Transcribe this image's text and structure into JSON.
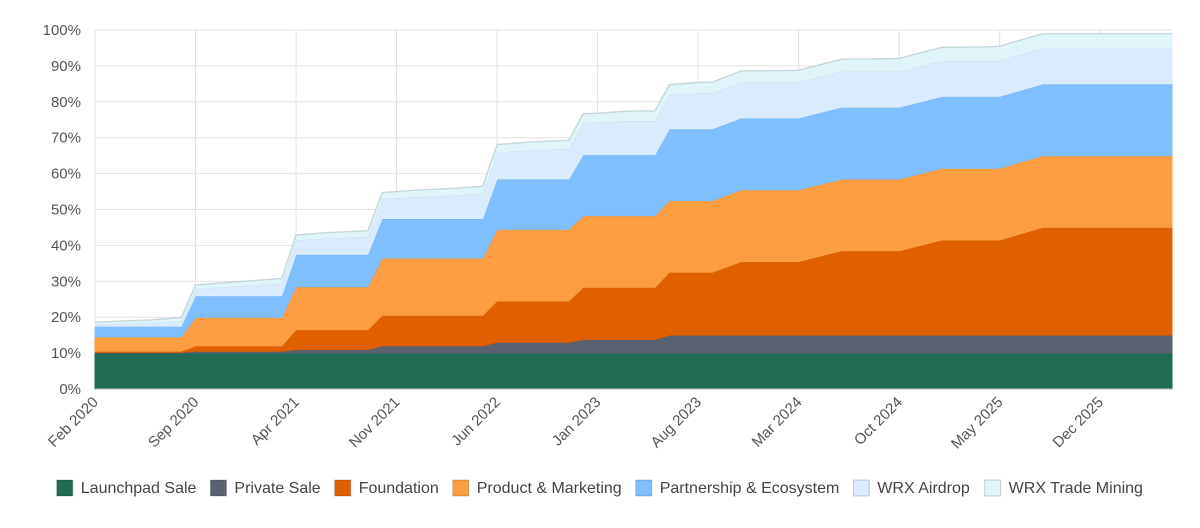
{
  "chart_data": {
    "type": "area",
    "stacked": true,
    "title": "",
    "xlabel": "",
    "ylabel": "",
    "ylim": [
      0,
      100
    ],
    "y_ticks": [
      "0%",
      "10%",
      "20%",
      "30%",
      "40%",
      "50%",
      "60%",
      "70%",
      "80%",
      "90%",
      "100%"
    ],
    "x_ticks": [
      "Feb 2020",
      "Sep 2020",
      "Apr 2021",
      "Nov 2021",
      "Jun 2022",
      "Jan 2023",
      "Aug 2023",
      "Mar 2024",
      "Oct 2024",
      "May 2025",
      "Dec 2025"
    ],
    "x_range": [
      "2020-02",
      "2026-05"
    ],
    "grid": true,
    "legend_position": "bottom",
    "x": [
      "2020-02",
      "2020-06",
      "2020-08",
      "2020-09",
      "2020-11",
      "2021-01",
      "2021-03",
      "2021-04",
      "2021-06",
      "2021-09",
      "2021-10",
      "2021-12",
      "2022-03",
      "2022-05",
      "2022-06",
      "2022-08",
      "2022-11",
      "2022-12",
      "2023-01",
      "2023-03",
      "2023-05",
      "2023-06",
      "2023-08",
      "2023-09",
      "2023-11",
      "2024-02",
      "2024-03",
      "2024-06",
      "2024-09",
      "2024-10",
      "2025-01",
      "2025-04",
      "2025-05",
      "2025-08",
      "2025-11",
      "2026-02",
      "2026-05"
    ],
    "series": [
      {
        "name": "Launchpad Sale",
        "color": "#1f6b53",
        "values": [
          10,
          10,
          10,
          10,
          10,
          10,
          10,
          10,
          10,
          10,
          10,
          10,
          10,
          10,
          10,
          10,
          10,
          10,
          10,
          10,
          10,
          10,
          10,
          10,
          10,
          10,
          10,
          10,
          10,
          10,
          10,
          10,
          10,
          10,
          10,
          10,
          10
        ]
      },
      {
        "name": "Private Sale",
        "color": "#5a6170",
        "values": [
          0.2,
          0.2,
          0.2,
          0.5,
          0.5,
          0.5,
          0.5,
          1,
          1,
          1,
          2,
          2,
          2,
          2,
          3,
          3,
          3,
          3.8,
          3.8,
          3.8,
          3.8,
          5,
          5,
          5,
          5,
          5,
          5,
          5,
          5,
          5,
          5,
          5,
          5,
          5,
          5,
          5,
          5
        ]
      },
      {
        "name": "Foundation",
        "color": "#e06000",
        "values": [
          0.3,
          0.3,
          0.3,
          1.5,
          1.5,
          1.5,
          1.5,
          5.5,
          5.5,
          5.5,
          8.5,
          8.5,
          8.5,
          8.5,
          11.5,
          11.5,
          11.5,
          14.5,
          14.5,
          14.5,
          14.5,
          17.5,
          17.5,
          17.5,
          20.5,
          20.5,
          20.5,
          23.5,
          23.5,
          23.5,
          26.5,
          26.5,
          26.5,
          30,
          30,
          30,
          30
        ]
      },
      {
        "name": "Product & Marketing",
        "color": "#fb9d40",
        "values": [
          4,
          4,
          4,
          8,
          8,
          8,
          8,
          12,
          12,
          12,
          16,
          16,
          16,
          16,
          20,
          20,
          20,
          20,
          20,
          20,
          20,
          20,
          20,
          20,
          20,
          20,
          20,
          20,
          20,
          20,
          20,
          20,
          20,
          20,
          20,
          20,
          20
        ]
      },
      {
        "name": "Partnership & Ecosystem",
        "color": "#7fbfff",
        "values": [
          3,
          3,
          3,
          6,
          6,
          6,
          6,
          9,
          9,
          9,
          11,
          11,
          11,
          11,
          14,
          14,
          14,
          17,
          17,
          17,
          17,
          20,
          20,
          20,
          20,
          20,
          20,
          20,
          20,
          20,
          20,
          20,
          20,
          20,
          20,
          20,
          20
        ]
      },
      {
        "name": "WRX Airdrop",
        "color": "#d9ebfc",
        "values": [
          0.5,
          1.0,
          1.5,
          2,
          2.5,
          3,
          3.5,
          4,
          4.5,
          5,
          5.5,
          6,
          6.5,
          7,
          7.5,
          8,
          8.5,
          9,
          9,
          9.5,
          9.5,
          9.5,
          10,
          10,
          10,
          10,
          10,
          10,
          10,
          10,
          10,
          10,
          10,
          10,
          10,
          10,
          10
        ]
      },
      {
        "name": "WRX Trade Mining",
        "color": "#e0f5fa",
        "values": [
          0.6,
          0.8,
          0.9,
          1.0,
          1.1,
          1.2,
          1.3,
          1.4,
          1.5,
          1.6,
          1.7,
          1.8,
          1.9,
          2.0,
          2.1,
          2.2,
          2.3,
          2.4,
          2.5,
          2.6,
          2.7,
          2.8,
          2.9,
          3,
          3.1,
          3.2,
          3.3,
          3.4,
          3.5,
          3.6,
          3.7,
          3.8,
          4,
          4,
          4,
          4,
          4
        ]
      }
    ]
  }
}
